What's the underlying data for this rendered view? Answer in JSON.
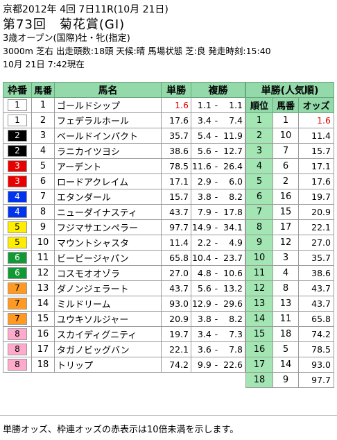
{
  "header": {
    "date_line": "京都2012年 4回 7日11R(10月 21日)",
    "title": "第73回　菊花賞(GI)",
    "race_class": "3歳オープン(国際)牡・牝(指定)",
    "race_info": "3000m 芝右 出走頭数:18頭 天候:晴 馬場状態 芝:良 発走時刻:15:40",
    "as_of": "10月 21日 7:42現在"
  },
  "columns": {
    "waku": "枠番",
    "umaban": "馬番",
    "name": "馬名",
    "win": "単勝",
    "place": "複勝"
  },
  "popularity": {
    "title": "単勝(人気順)",
    "rank": "順位",
    "umaban": "馬番",
    "odds": "オッズ"
  },
  "colors": {
    "header_green": "#93d9a9",
    "red_text": "#e00000",
    "waku": {
      "1": [
        "#ffffff",
        "#000000"
      ],
      "2": [
        "#000000",
        "#ffffff"
      ],
      "3": [
        "#e80000",
        "#ffffff"
      ],
      "4": [
        "#0033ee",
        "#ffffff"
      ],
      "5": [
        "#ffee00",
        "#000000"
      ],
      "6": [
        "#119933",
        "#ffffff"
      ],
      "7": [
        "#ff9922",
        "#000000"
      ],
      "8": [
        "#ffaacc",
        "#000000"
      ]
    }
  },
  "horses": [
    {
      "waku": "1",
      "umaban": "1",
      "name": "ゴールドシップ",
      "win": "1.6",
      "win_red": true,
      "place_lo": "1.1",
      "place_dash": "-",
      "place_hi": "1.1"
    },
    {
      "waku": "1",
      "umaban": "2",
      "name": "フェデラルホール",
      "win": "17.6",
      "place_lo": "3.4",
      "place_dash": "-",
      "place_hi": "7.4"
    },
    {
      "waku": "2",
      "umaban": "3",
      "name": "ベールドインパクト",
      "win": "35.7",
      "place_lo": "5.4",
      "place_dash": "-",
      "place_hi": "11.9"
    },
    {
      "waku": "2",
      "umaban": "4",
      "name": "ラニカイツヨシ",
      "win": "38.6",
      "place_lo": "5.6",
      "place_dash": "-",
      "place_hi": "12.7"
    },
    {
      "waku": "3",
      "umaban": "5",
      "name": "アーデント",
      "win": "78.5",
      "place_lo": "11.6",
      "place_dash": "-",
      "place_hi": "26.4"
    },
    {
      "waku": "3",
      "umaban": "6",
      "name": "ロードアクレイム",
      "win": "17.1",
      "place_lo": "2.9",
      "place_dash": "-",
      "place_hi": "6.0"
    },
    {
      "waku": "4",
      "umaban": "7",
      "name": "エタンダール",
      "win": "15.7",
      "place_lo": "3.8",
      "place_dash": "-",
      "place_hi": "8.2"
    },
    {
      "waku": "4",
      "umaban": "8",
      "name": "ニューダイナスティ",
      "win": "43.7",
      "place_lo": "7.9",
      "place_dash": "-",
      "place_hi": "17.8"
    },
    {
      "waku": "5",
      "umaban": "9",
      "name": "フジマサエンペラー",
      "win": "97.7",
      "place_lo": "14.9",
      "place_dash": "-",
      "place_hi": "34.1"
    },
    {
      "waku": "5",
      "umaban": "10",
      "name": "マウントシャスタ",
      "win": "11.4",
      "place_lo": "2.2",
      "place_dash": "-",
      "place_hi": "4.9"
    },
    {
      "waku": "6",
      "umaban": "11",
      "name": "ビービージャパン",
      "win": "65.8",
      "place_lo": "10.4",
      "place_dash": "-",
      "place_hi": "23.7"
    },
    {
      "waku": "6",
      "umaban": "12",
      "name": "コスモオオゾラ",
      "win": "27.0",
      "place_lo": "4.8",
      "place_dash": "-",
      "place_hi": "10.6"
    },
    {
      "waku": "7",
      "umaban": "13",
      "name": "ダノンジェラート",
      "win": "43.7",
      "place_lo": "5.6",
      "place_dash": "-",
      "place_hi": "13.2"
    },
    {
      "waku": "7",
      "umaban": "14",
      "name": "ミルドリーム",
      "win": "93.0",
      "place_lo": "12.9",
      "place_dash": "-",
      "place_hi": "29.6"
    },
    {
      "waku": "7",
      "umaban": "15",
      "name": "ユウキソルジャー",
      "win": "20.9",
      "place_lo": "3.8",
      "place_dash": "-",
      "place_hi": "8.2"
    },
    {
      "waku": "8",
      "umaban": "16",
      "name": "スカイディグニティ",
      "win": "19.7",
      "place_lo": "3.4",
      "place_dash": "-",
      "place_hi": "7.3"
    },
    {
      "waku": "8",
      "umaban": "17",
      "name": "タガノビッグバン",
      "win": "22.1",
      "place_lo": "3.6",
      "place_dash": "-",
      "place_hi": "7.8"
    },
    {
      "waku": "8",
      "umaban": "18",
      "name": "トリップ",
      "win": "74.2",
      "place_lo": "9.9",
      "place_dash": "-",
      "place_hi": "22.6"
    }
  ],
  "ranking": [
    {
      "rank": "1",
      "umaban": "1",
      "odds": "1.6",
      "red": true
    },
    {
      "rank": "2",
      "umaban": "10",
      "odds": "11.4"
    },
    {
      "rank": "3",
      "umaban": "7",
      "odds": "15.7"
    },
    {
      "rank": "4",
      "umaban": "6",
      "odds": "17.1"
    },
    {
      "rank": "5",
      "umaban": "2",
      "odds": "17.6"
    },
    {
      "rank": "6",
      "umaban": "16",
      "odds": "19.7"
    },
    {
      "rank": "7",
      "umaban": "15",
      "odds": "20.9"
    },
    {
      "rank": "8",
      "umaban": "17",
      "odds": "22.1"
    },
    {
      "rank": "9",
      "umaban": "12",
      "odds": "27.0"
    },
    {
      "rank": "10",
      "umaban": "3",
      "odds": "35.7"
    },
    {
      "rank": "11",
      "umaban": "4",
      "odds": "38.6"
    },
    {
      "rank": "12",
      "umaban": "8",
      "odds": "43.7"
    },
    {
      "rank": "13",
      "umaban": "13",
      "odds": "43.7"
    },
    {
      "rank": "14",
      "umaban": "11",
      "odds": "65.8"
    },
    {
      "rank": "15",
      "umaban": "18",
      "odds": "74.2"
    },
    {
      "rank": "16",
      "umaban": "5",
      "odds": "78.5"
    },
    {
      "rank": "17",
      "umaban": "14",
      "odds": "93.0"
    },
    {
      "rank": "18",
      "umaban": "9",
      "odds": "97.7"
    }
  ],
  "footer_note": "単勝オッズ、枠連オッズの赤表示は10倍未満を示します。"
}
